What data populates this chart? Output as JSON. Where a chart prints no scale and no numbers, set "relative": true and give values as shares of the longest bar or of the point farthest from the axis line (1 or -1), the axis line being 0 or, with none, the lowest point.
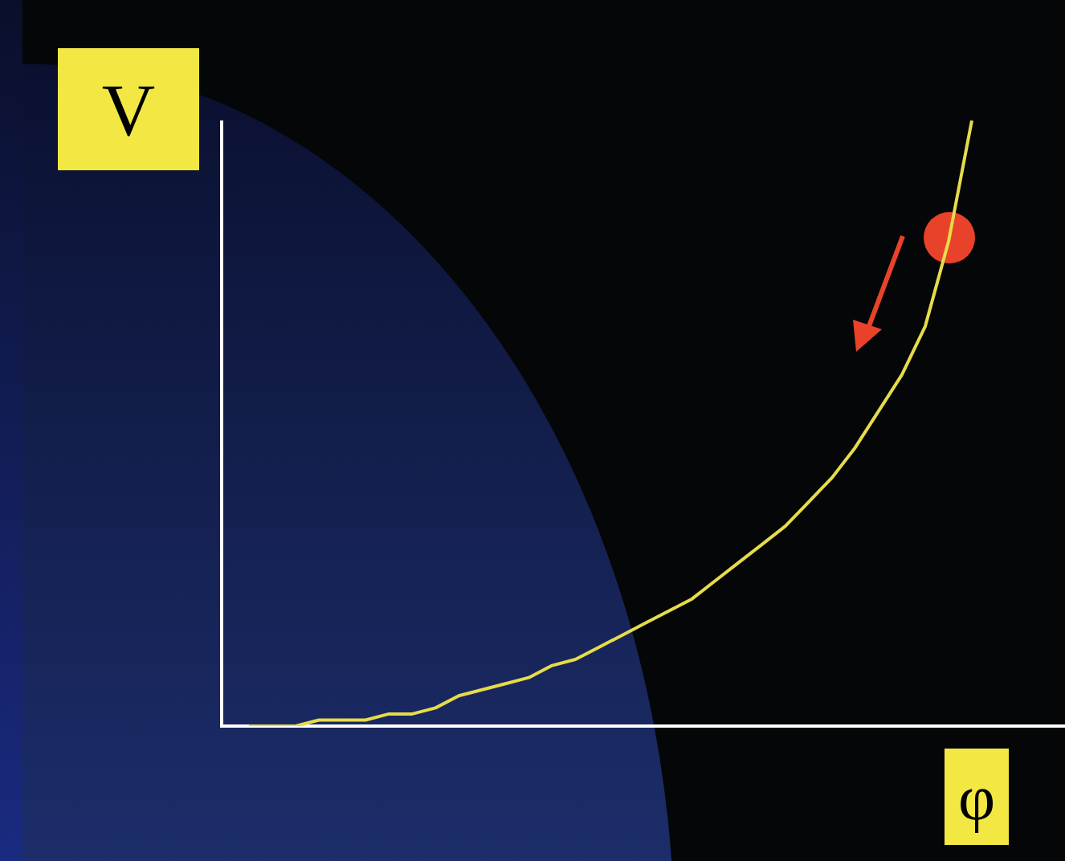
{
  "chart_data": {
    "type": "line",
    "relative": true,
    "xlabel": "φ",
    "ylabel": "V",
    "categories": [
      null,
      null,
      null,
      null,
      null,
      null,
      null,
      null,
      null,
      null,
      null,
      null,
      null,
      null,
      null,
      null,
      null,
      null,
      null,
      null,
      null,
      null,
      null,
      null,
      null,
      null,
      null,
      null,
      null,
      null,
      null,
      null
    ],
    "series": [
      {
        "color": "#e6dc4a",
        "values": [
          0,
          0,
          0,
          0.01,
          0.01,
          0.01,
          0.02,
          0.02,
          0.03,
          0.05,
          0.06,
          0.07,
          0.08,
          0.1,
          0.11,
          0.13,
          0.15,
          0.17,
          0.19,
          0.21,
          0.24,
          0.27,
          0.3,
          0.33,
          0.37,
          0.41,
          0.46,
          0.52,
          0.58,
          0.66,
          0.8,
          1
        ]
      }
    ]
  }
}
